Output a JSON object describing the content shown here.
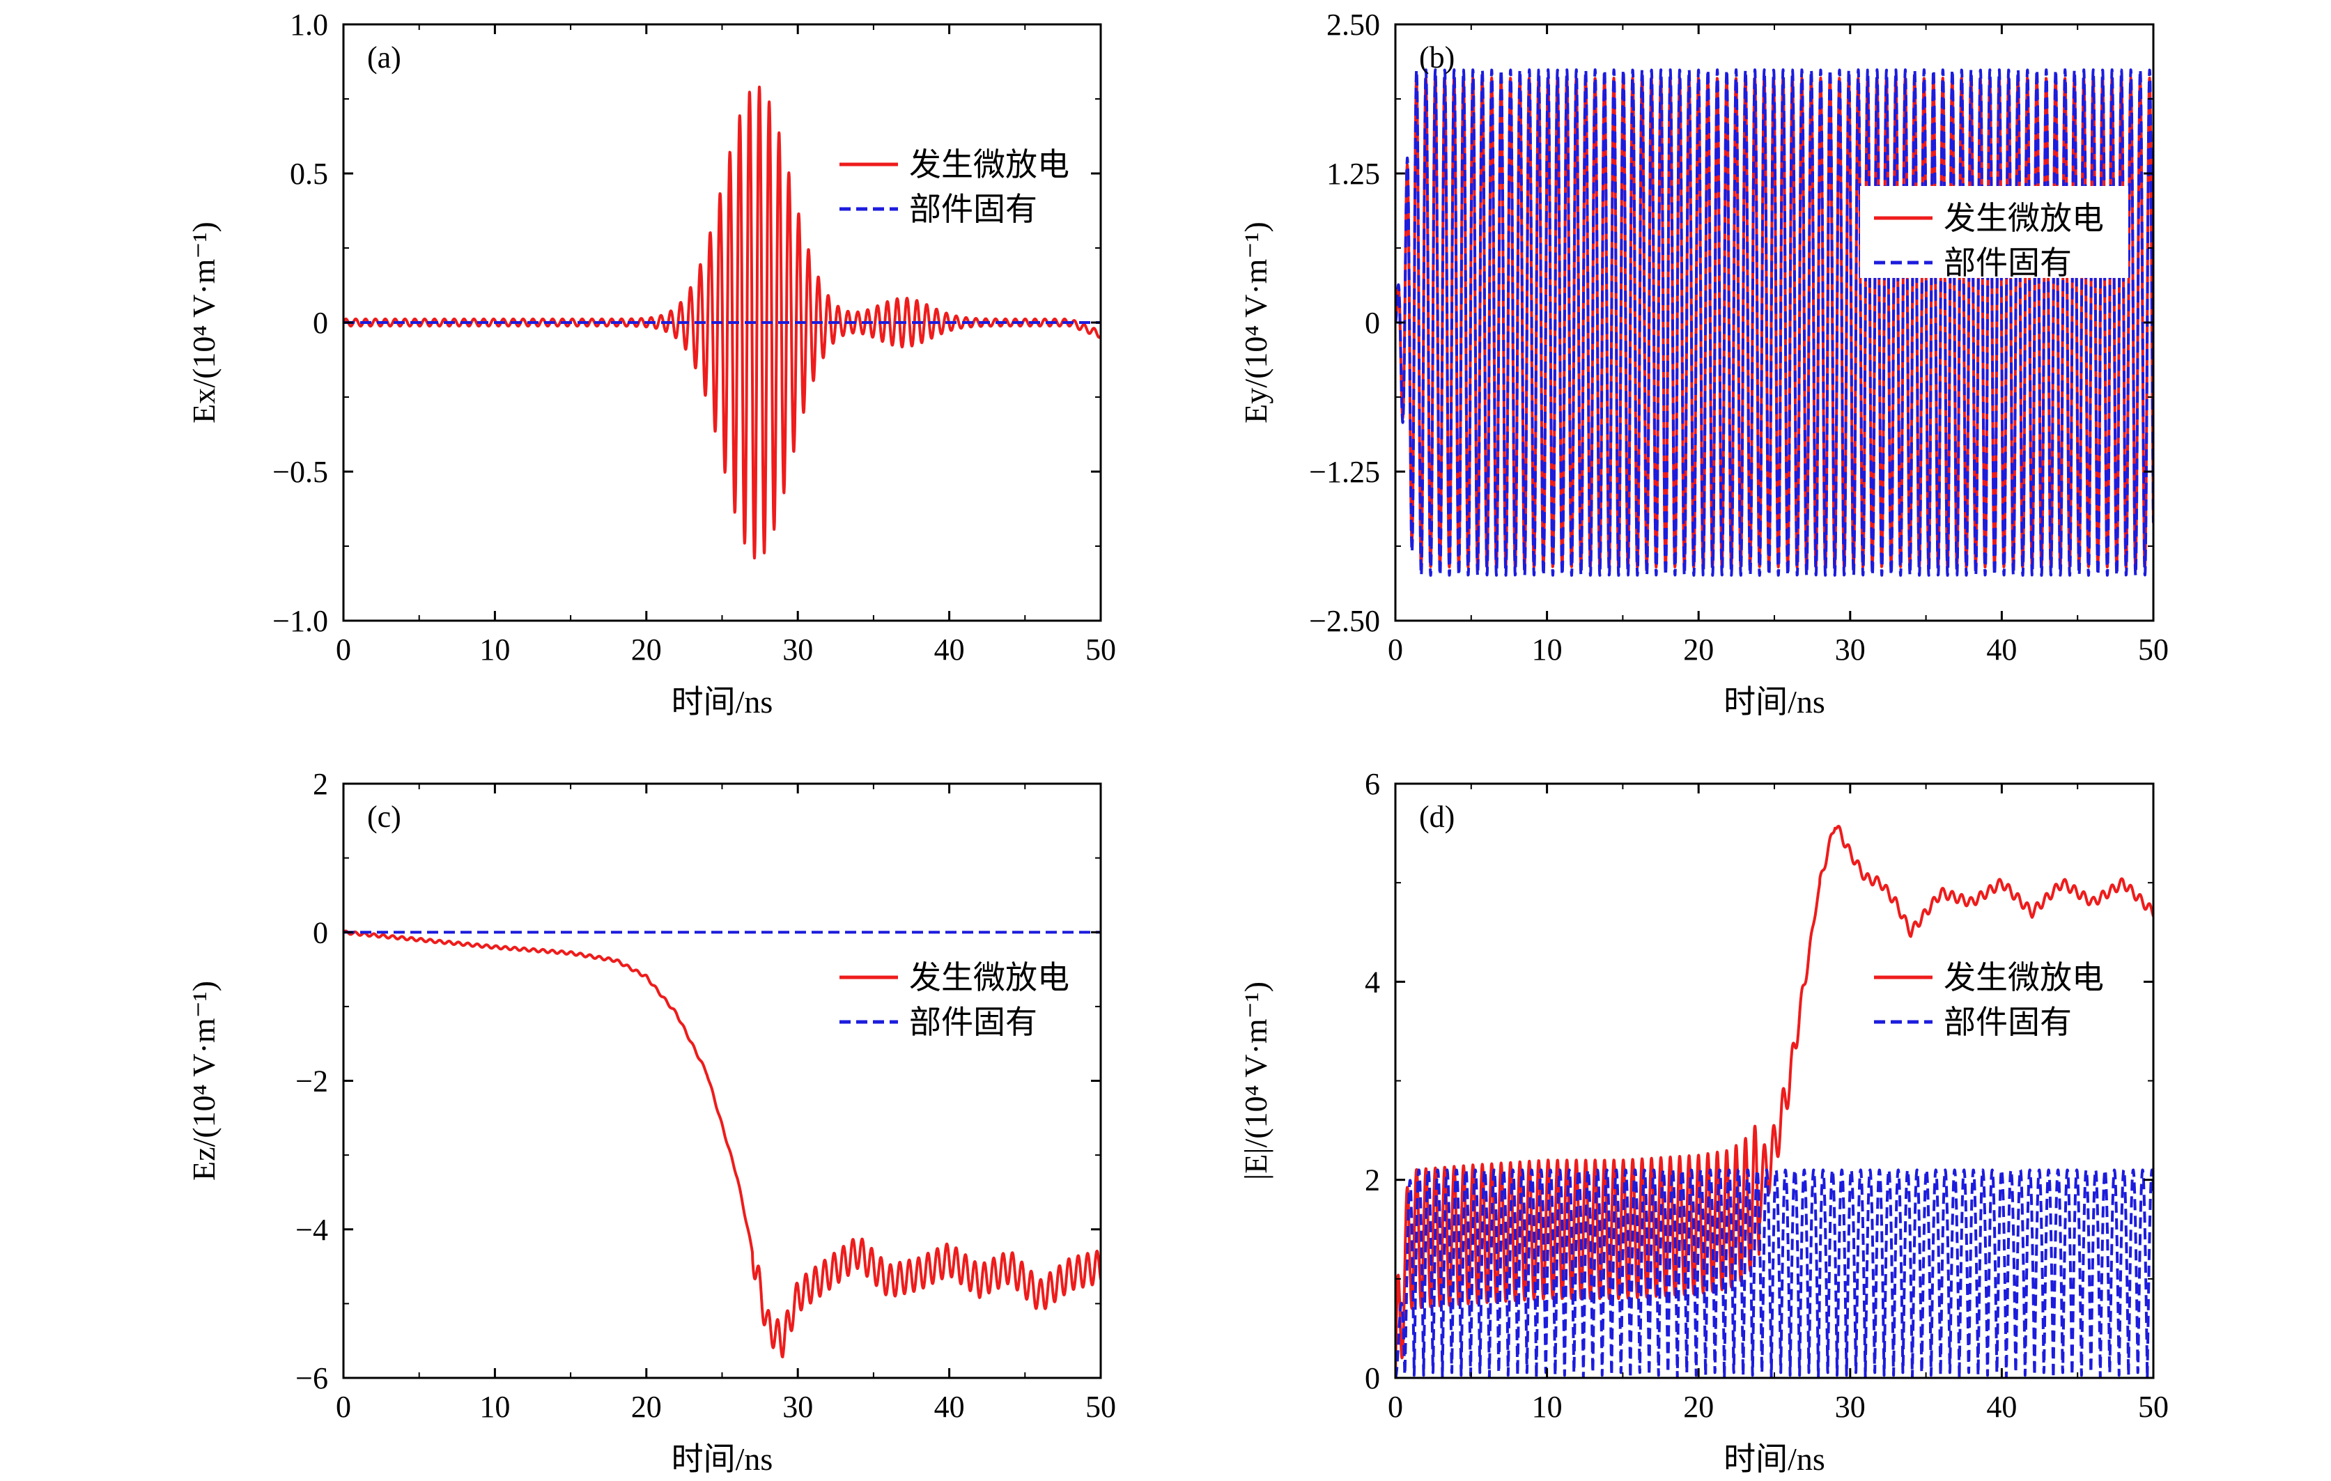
{
  "colors": {
    "red": "#ee1c1c",
    "blue": "#1c1cdd"
  },
  "legend_labels": [
    "发生微放电",
    "部件固有"
  ],
  "chart_data": [
    {
      "id": "a",
      "type": "line",
      "tag": "(a)",
      "xlabel": "时间/ns",
      "ylabel": "Ex/(10⁴ V·m⁻¹)",
      "xlim": [
        0,
        50
      ],
      "ylim": [
        -1.0,
        1.0
      ],
      "xticks": [
        "0",
        "10",
        "20",
        "30",
        "40",
        "50"
      ],
      "yticks": [
        "−1.0",
        "−0.5",
        "0",
        "0.5",
        "1.0"
      ],
      "legend_position": "upper-right",
      "series": [
        {
          "name": "发生微放电",
          "style": "solid",
          "color": "#ee1c1c",
          "description": "wave packet centered near 27.5 ns",
          "x": [
            0,
            5,
            10,
            15,
            18,
            20,
            22,
            24,
            26,
            27,
            27.5,
            28,
            29,
            30,
            31,
            33,
            35,
            38,
            40,
            45,
            48,
            50
          ],
          "y": [
            0,
            0.015,
            0.01,
            0.02,
            0.05,
            0.1,
            0.18,
            0.4,
            0.68,
            0.75,
            -0.8,
            0.72,
            0.55,
            0.35,
            0.15,
            0.1,
            0.06,
            0.08,
            0.03,
            0.02,
            0.05,
            -0.04
          ]
        },
        {
          "name": "部件固有",
          "style": "dashed",
          "color": "#1c1cdd",
          "x": [
            0,
            50
          ],
          "y": [
            0,
            0
          ]
        }
      ]
    },
    {
      "id": "b",
      "type": "line",
      "tag": "(b)",
      "xlabel": "时间/ns",
      "ylabel": "Ey/(10⁴ V·m⁻¹)",
      "xlim": [
        0,
        50
      ],
      "ylim": [
        -2.5,
        2.5
      ],
      "xticks": [
        "0",
        "10",
        "20",
        "30",
        "40",
        "50"
      ],
      "yticks": [
        "−2.50",
        "−1.25",
        "0",
        "1.25",
        "2.50"
      ],
      "legend_position": "right",
      "series": [
        {
          "name": "发生微放电",
          "style": "solid",
          "color": "#ee1c1c",
          "amplitude": 2.1,
          "period_ns": 0.62,
          "x": [
            0,
            50
          ],
          "y": [
            -2.1,
            2.1
          ]
        },
        {
          "name": "部件固有",
          "style": "dashed",
          "color": "#1c1cdd",
          "amplitude": 2.15,
          "period_ns": 0.62,
          "x": [
            0,
            50
          ],
          "y": [
            -2.15,
            2.15
          ]
        }
      ]
    },
    {
      "id": "c",
      "type": "line",
      "tag": "(c)",
      "xlabel": "时间/ns",
      "ylabel": "Ez/(10⁴ V·m⁻¹)",
      "xlim": [
        0,
        50
      ],
      "ylim": [
        -6,
        2
      ],
      "xticks": [
        "0",
        "10",
        "20",
        "30",
        "40",
        "50"
      ],
      "yticks": [
        "−6",
        "−4",
        "−2",
        "0",
        "2"
      ],
      "legend_position": "right",
      "series": [
        {
          "name": "发生微放电",
          "style": "solid",
          "color": "#ee1c1c",
          "x": [
            0,
            5,
            10,
            15,
            18,
            20,
            22,
            24,
            26,
            27,
            28,
            29,
            30,
            32,
            34,
            36,
            38,
            40,
            42,
            44,
            46,
            48,
            50
          ],
          "y": [
            0,
            -0.1,
            -0.2,
            -0.28,
            -0.38,
            -0.6,
            -1.1,
            -1.9,
            -3.3,
            -4.3,
            -5.3,
            -5.5,
            -4.9,
            -4.6,
            -4.3,
            -4.7,
            -4.6,
            -4.4,
            -4.7,
            -4.5,
            -4.9,
            -4.6,
            -4.5
          ]
        },
        {
          "name": "部件固有",
          "style": "dashed",
          "color": "#1c1cdd",
          "x": [
            0,
            50
          ],
          "y": [
            0,
            0
          ]
        }
      ]
    },
    {
      "id": "d",
      "type": "line",
      "tag": "(d)",
      "xlabel": "时间/ns",
      "ylabel": "|E|/(10⁴ V·m⁻¹)",
      "xlim": [
        0,
        50
      ],
      "ylim": [
        0,
        6
      ],
      "xticks": [
        "0",
        "10",
        "20",
        "30",
        "40",
        "50"
      ],
      "yticks": [
        "0",
        "2",
        "4",
        "6"
      ],
      "legend_position": "right",
      "series": [
        {
          "name": "发生微放电",
          "style": "solid",
          "color": "#ee1c1c",
          "x": [
            0,
            0.5,
            1,
            5,
            10,
            15,
            20,
            22,
            23,
            24,
            25,
            26,
            27,
            28,
            29,
            30,
            31,
            32,
            33,
            34,
            36,
            38,
            40,
            42,
            44,
            46,
            48,
            50
          ],
          "y": [
            0,
            1.0,
            1.4,
            1.45,
            1.5,
            1.5,
            1.55,
            1.6,
            1.7,
            1.9,
            2.3,
            3.0,
            4.0,
            5.0,
            5.6,
            5.3,
            5.05,
            5.0,
            4.8,
            4.5,
            4.9,
            4.8,
            5.0,
            4.7,
            5.0,
            4.8,
            5.0,
            4.7
          ]
        },
        {
          "name": "部件固有",
          "style": "dashed",
          "color": "#1c1cdd",
          "description": "|sin| oscillation between 0 and 2.1",
          "x": [
            0,
            50
          ],
          "y": [
            0,
            2.1
          ]
        }
      ]
    }
  ]
}
